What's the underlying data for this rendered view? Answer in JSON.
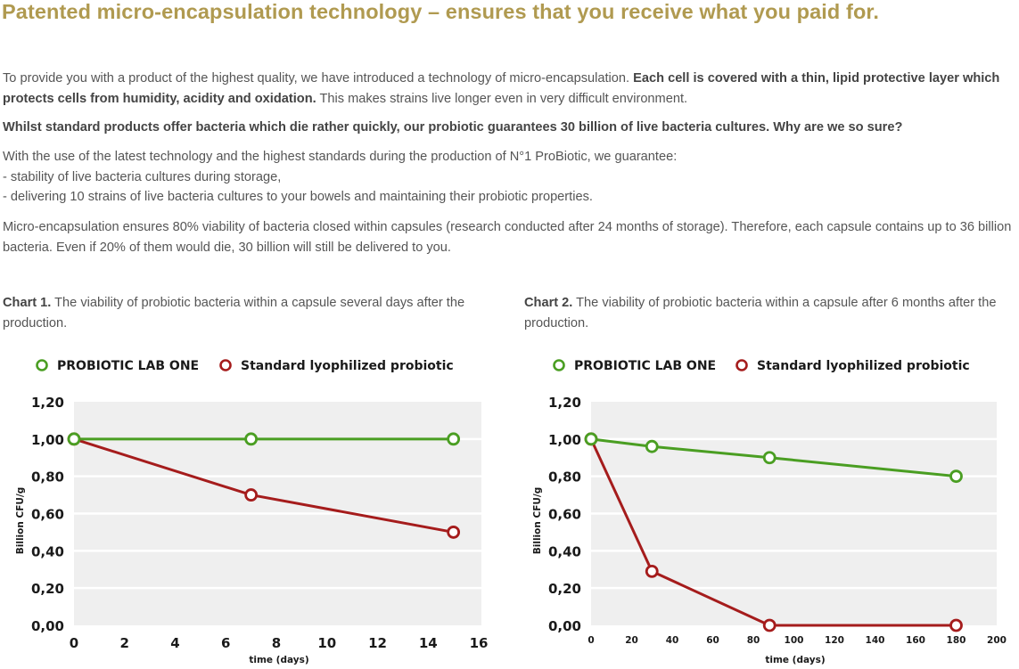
{
  "heading": "Patented micro-encapsulation technology – ensures that you receive what you paid for.",
  "paragraph1": {
    "text_a": "To provide you with a product of the highest quality, we have introduced a technology of micro-encapsulation. ",
    "bold": "Each cell is covered with a thin, lipid protective layer which protects cells from humidity, acidity and oxidation.",
    "text_b": " This makes strains live longer even in very difficult environment."
  },
  "paragraph2": "Whilst standard products offer bacteria which die rather quickly, our probiotic guarantees 30 billion of live bacteria cultures. Why are we so sure?",
  "paragraph3": {
    "intro": "With the use of the latest technology and the highest standards during the production of N°1 ProBiotic, we guarantee:",
    "items": [
      "- stability of live bacteria cultures during storage,",
      "- delivering 10 strains of live bacteria cultures to your bowels and maintaining their probiotic properties."
    ]
  },
  "paragraph4": "Micro-encapsulation ensures 80% viability of bacteria closed within capsules (research conducted after 24 months of storage). Therefore, each capsule contains up to 36 billion bacteria. Even if 20% of them would die, 30 billion will still be delivered to you.",
  "colors": {
    "heading": "#b09a50",
    "series_green": "#4a9e22",
    "series_red": "#a51c1c",
    "plot_bg": "#efefef",
    "grid": "#ffffff"
  },
  "chart_data": [
    {
      "type": "line",
      "caption_label": "Chart 1.",
      "title": "The viability of probiotic bacteria within a capsule several days after the production.",
      "xlabel": "time (days)",
      "ylabel": "Billion CFU/g",
      "xlim": [
        0,
        16
      ],
      "ylim": [
        0,
        1.2
      ],
      "x_ticks": [
        "0",
        "2",
        "4",
        "6",
        "8",
        "10",
        "12",
        "14",
        "16"
      ],
      "y_ticks": [
        "0,00",
        "0,20",
        "0,40",
        "0,60",
        "0,80",
        "1,00",
        "1,20"
      ],
      "grid": true,
      "legend_position": "top-left",
      "series": [
        {
          "name": "PROBIOTIC LAB ONE",
          "color": "#4a9e22",
          "x": [
            0,
            7,
            15
          ],
          "values": [
            1.0,
            1.0,
            1.0
          ]
        },
        {
          "name": "Standard lyophilized probiotic",
          "color": "#a51c1c",
          "x": [
            0,
            7,
            15
          ],
          "values": [
            1.0,
            0.7,
            0.5
          ]
        }
      ]
    },
    {
      "type": "line",
      "caption_label": "Chart 2.",
      "title": "The viability of probiotic bacteria within a capsule after 6 months after the production.",
      "xlabel": "time (days)",
      "ylabel": "Billion CFU/g",
      "xlim": [
        0,
        200
      ],
      "ylim": [
        0,
        1.2
      ],
      "x_ticks": [
        "0",
        "20",
        "40",
        "60",
        "80",
        "100",
        "120",
        "140",
        "160",
        "180",
        "200"
      ],
      "y_ticks": [
        "0,00",
        "0,20",
        "0,40",
        "0,60",
        "0,80",
        "1,00",
        "1,20"
      ],
      "grid": true,
      "legend_position": "top-left",
      "series": [
        {
          "name": "PROBIOTIC LAB ONE",
          "color": "#4a9e22",
          "x": [
            0,
            30,
            88,
            180
          ],
          "values": [
            1.0,
            0.96,
            0.9,
            0.8
          ]
        },
        {
          "name": "Standard lyophilized probiotic",
          "color": "#a51c1c",
          "x": [
            0,
            30,
            88,
            180
          ],
          "values": [
            1.0,
            0.29,
            0.0,
            0.0
          ]
        }
      ]
    }
  ]
}
